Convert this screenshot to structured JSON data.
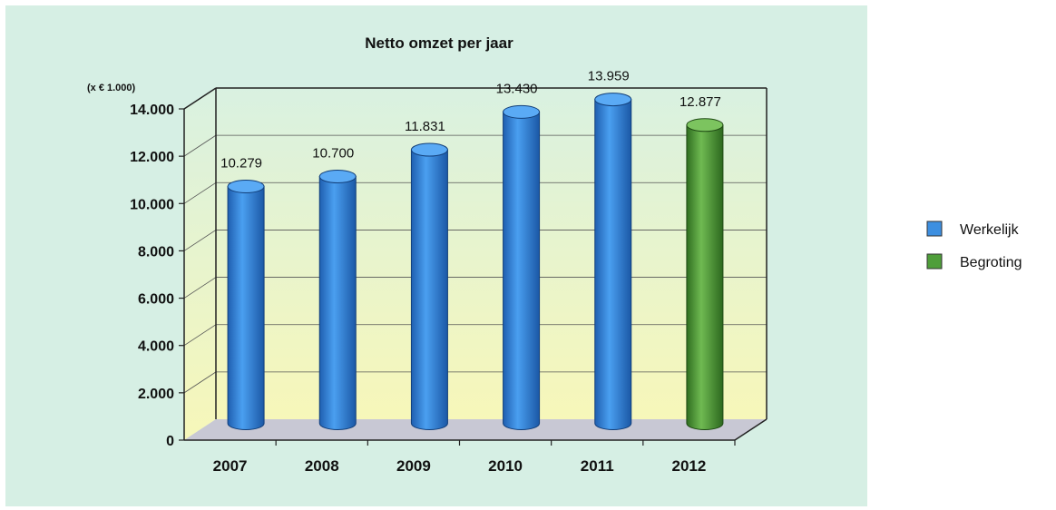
{
  "chart_data": {
    "type": "bar",
    "title": "Netto omzet per jaar",
    "unit_label": "(x € 1.000)",
    "categories": [
      "2007",
      "2008",
      "2009",
      "2010",
      "2011",
      "2012"
    ],
    "values": [
      10279,
      10700,
      11831,
      13430,
      13959,
      12877
    ],
    "value_labels": [
      "10.279",
      "10.700",
      "11.831",
      "13.430",
      "13.959",
      "12.877"
    ],
    "series_of_bar": [
      0,
      0,
      0,
      0,
      0,
      1
    ],
    "series": [
      {
        "name": "Werkelijk",
        "color": "#3d8fe0"
      },
      {
        "name": "Begroting",
        "color": "#4f9e3a"
      }
    ],
    "ylim": [
      0,
      14000
    ],
    "yticks": [
      0,
      2000,
      4000,
      6000,
      8000,
      10000,
      12000,
      14000
    ],
    "ytick_labels": [
      "0",
      "2.000",
      "4.000",
      "6.000",
      "8.000",
      "10.000",
      "12.000",
      "14.000"
    ],
    "grid": true,
    "legend": "right",
    "colors": {
      "panel_background": "#d6efe4",
      "plot_top": "#d9f1e1",
      "plot_bottom": "#f7f7b9",
      "floor": "#c8c8d4"
    }
  }
}
